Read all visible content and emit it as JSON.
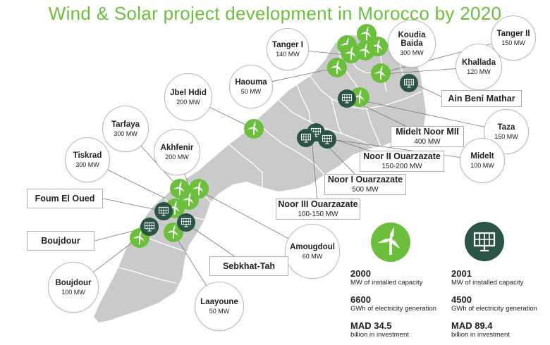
{
  "title": "Wind & Solar project development in Morocco by 2020",
  "colors": {
    "wind": "#6cbf3c",
    "solar": "#2c5446",
    "land": "#cacaca",
    "border": "#ffffff",
    "title": "#6cbf3c"
  },
  "icons": {
    "wind": "wind-turbine-icon",
    "solar": "solar-panel-icon"
  },
  "projects": [
    {
      "name": "Tanger I",
      "capacity": "140 MW"
    },
    {
      "name": "Koudia Baida",
      "capacity": "300 MW"
    },
    {
      "name": "Tanger II",
      "capacity": "150 MW"
    },
    {
      "name": "Khallada",
      "capacity": "120 MW"
    },
    {
      "name": "Haouma",
      "capacity": "50 MW"
    },
    {
      "name": "Jbel Hdid",
      "capacity": "200 MW"
    },
    {
      "name": "Ain Beni Mathar",
      "capacity": ""
    },
    {
      "name": "Taza",
      "capacity": "150 MW"
    },
    {
      "name": "Midelt Noor MII",
      "capacity": "400 MW"
    },
    {
      "name": "Midelt",
      "capacity": "100 MW"
    },
    {
      "name": "Tarfaya",
      "capacity": "300 MW"
    },
    {
      "name": "Akhfenir",
      "capacity": "200 MW"
    },
    {
      "name": "Tiskrad",
      "capacity": "300 MW"
    },
    {
      "name": "Noor II Ouarzazate",
      "capacity": "150-200 MW"
    },
    {
      "name": "Noor I Ouarzazate",
      "capacity": "500 MW"
    },
    {
      "name": "Noor III Ouarzazate",
      "capacity": "100-150 MW"
    },
    {
      "name": "Foum El Oued",
      "capacity": ""
    },
    {
      "name": "Boujdour",
      "capacity": ""
    },
    {
      "name": "Amougdoul",
      "capacity": "60 MW"
    },
    {
      "name": "Sebkhat-Tah",
      "capacity": ""
    },
    {
      "name": "Boujdour",
      "capacity": "100 MW"
    },
    {
      "name": "Laayoune",
      "capacity": "50 MW"
    }
  ],
  "stats": {
    "wind": [
      {
        "value": "2000",
        "label": "MW of installed capacity"
      },
      {
        "value": "6600",
        "label": "GWh of electricity generation"
      },
      {
        "value": "MAD 34.5",
        "label": "billion in investment"
      }
    ],
    "solar": [
      {
        "value": "2001",
        "label": "MW of installed capacity"
      },
      {
        "value": "4500",
        "label": "GWh of electricity generation"
      },
      {
        "value": "MAD 89.4",
        "label": "billion in investment"
      }
    ]
  }
}
